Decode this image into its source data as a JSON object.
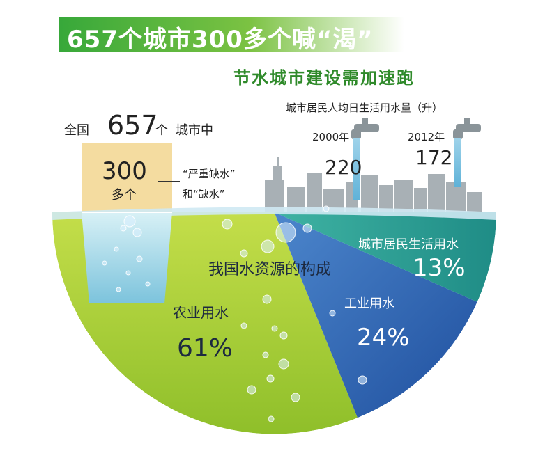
{
  "title": "657个城市300多个喊“渴”",
  "subtitle": "节水城市建设需加速跑",
  "cities": {
    "prefix": "全国",
    "total": "657",
    "total_unit": "个",
    "suffix": "城市中",
    "shortage_count": "300",
    "shortage_unit": "多个",
    "shortage_label_line1": "“严重缺水”",
    "shortage_label_line2": "和“缺水”"
  },
  "usage": {
    "title": "城市居民人均日生活用水量（升）",
    "items": [
      {
        "year": "2000年",
        "value": "220"
      },
      {
        "year": "2012年",
        "value": "172"
      }
    ]
  },
  "chart_data": {
    "type": "pie",
    "title": "我国水资源的构成",
    "labels": [
      "农业用水",
      "工业用水",
      "城市居民生活用水"
    ],
    "values": [
      61,
      24,
      13
    ],
    "value_labels": [
      "61%",
      "24%",
      "13%"
    ],
    "colors": [
      "#a8cf3a",
      "#2f63b4",
      "#2aa39a"
    ]
  }
}
